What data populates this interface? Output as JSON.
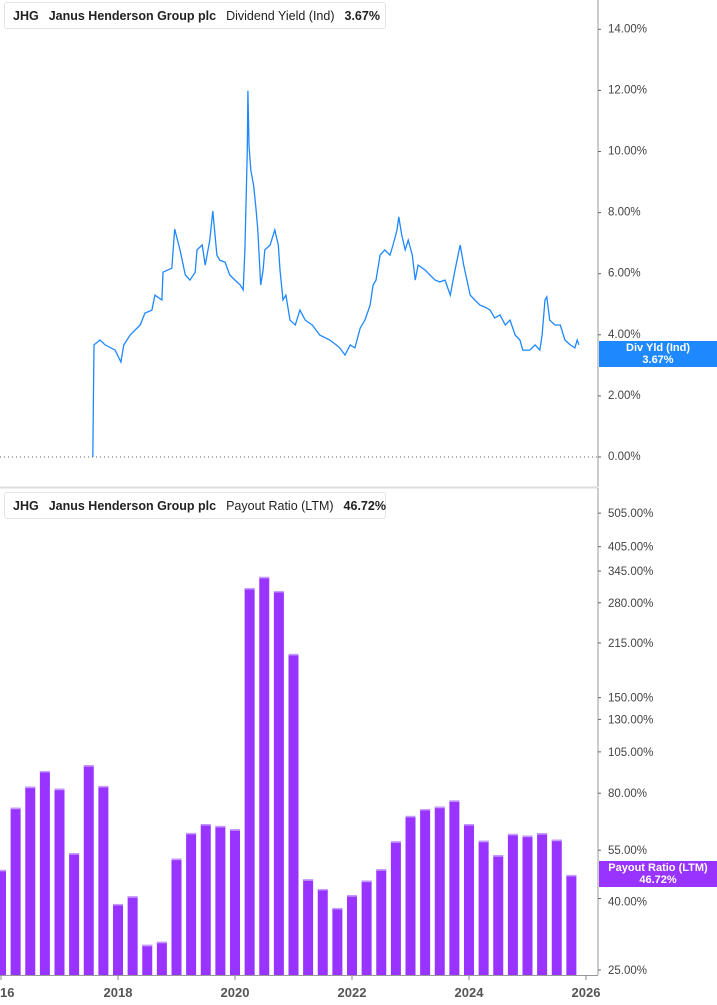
{
  "top_header": {
    "ticker": "JHG",
    "company": "Janus Henderson Group plc",
    "metric": "Dividend Yield (Ind)",
    "value": "3.67%"
  },
  "bottom_header": {
    "ticker": "JHG",
    "company": "Janus Henderson Group plc",
    "metric": "Payout Ratio (LTM)",
    "value": "46.72%"
  },
  "top_badge": {
    "label": "Div Yld (Ind)",
    "value": "3.67%"
  },
  "bottom_badge": {
    "label": "Payout Ratio (LTM)",
    "value": "46.72%"
  },
  "colors": {
    "yield": "#1e88ff",
    "payout": "#9933ff"
  },
  "x_ticks": [
    "16",
    "2018",
    "2020",
    "2022",
    "2024",
    "2026"
  ],
  "chart_data": [
    {
      "type": "line",
      "title": "Dividend Yield (Ind)",
      "x_unit": "year",
      "y_ticks": [
        "0.00%",
        "2.00%",
        "4.00%",
        "6.00%",
        "8.00%",
        "10.00%",
        "12.00%",
        "14.00%"
      ],
      "ylim": [
        0,
        14.9
      ],
      "xlim": [
        2016,
        2026.2
      ],
      "series": [
        {
          "name": "Dividend Yield (Ind)",
          "points": [
            [
              2017.57,
              0
            ],
            [
              2017.59,
              3.67
            ],
            [
              2017.69,
              3.83
            ],
            [
              2017.78,
              3.67
            ],
            [
              2017.95,
              3.5
            ],
            [
              2018.05,
              3.11
            ],
            [
              2018.1,
              3.67
            ],
            [
              2018.21,
              4.0
            ],
            [
              2018.38,
              4.32
            ],
            [
              2018.46,
              4.71
            ],
            [
              2018.58,
              4.81
            ],
            [
              2018.63,
              5.3
            ],
            [
              2018.75,
              5.14
            ],
            [
              2018.77,
              6.05
            ],
            [
              2018.92,
              6.18
            ],
            [
              2018.97,
              7.46
            ],
            [
              2019.06,
              6.78
            ],
            [
              2019.15,
              5.96
            ],
            [
              2019.23,
              5.79
            ],
            [
              2019.32,
              6.05
            ],
            [
              2019.35,
              6.78
            ],
            [
              2019.44,
              6.94
            ],
            [
              2019.49,
              6.28
            ],
            [
              2019.57,
              7.1
            ],
            [
              2019.62,
              8.05
            ],
            [
              2019.69,
              6.61
            ],
            [
              2019.74,
              6.44
            ],
            [
              2019.83,
              6.38
            ],
            [
              2019.91,
              5.96
            ],
            [
              2020.0,
              5.79
            ],
            [
              2020.09,
              5.63
            ],
            [
              2020.14,
              5.47
            ],
            [
              2020.17,
              6.78
            ],
            [
              2020.21,
              10.05
            ],
            [
              2020.22,
              11.99
            ],
            [
              2020.24,
              10.21
            ],
            [
              2020.27,
              9.39
            ],
            [
              2020.32,
              8.87
            ],
            [
              2020.36,
              8.09
            ],
            [
              2020.39,
              7.43
            ],
            [
              2020.44,
              5.63
            ],
            [
              2020.48,
              6.12
            ],
            [
              2020.51,
              6.78
            ],
            [
              2020.6,
              6.94
            ],
            [
              2020.68,
              7.43
            ],
            [
              2020.74,
              6.94
            ],
            [
              2020.77,
              6.12
            ],
            [
              2020.82,
              5.14
            ],
            [
              2020.87,
              5.3
            ],
            [
              2020.94,
              4.48
            ],
            [
              2021.03,
              4.32
            ],
            [
              2021.11,
              4.81
            ],
            [
              2021.2,
              4.48
            ],
            [
              2021.32,
              4.32
            ],
            [
              2021.45,
              3.99
            ],
            [
              2021.62,
              3.83
            ],
            [
              2021.73,
              3.67
            ],
            [
              2021.79,
              3.57
            ],
            [
              2021.88,
              3.34
            ],
            [
              2021.97,
              3.67
            ],
            [
              2022.05,
              3.57
            ],
            [
              2022.14,
              4.22
            ],
            [
              2022.22,
              4.48
            ],
            [
              2022.31,
              4.97
            ],
            [
              2022.36,
              5.63
            ],
            [
              2022.41,
              5.79
            ],
            [
              2022.48,
              6.61
            ],
            [
              2022.56,
              6.78
            ],
            [
              2022.65,
              6.61
            ],
            [
              2022.7,
              6.94
            ],
            [
              2022.77,
              7.43
            ],
            [
              2022.8,
              7.86
            ],
            [
              2022.85,
              7.27
            ],
            [
              2022.91,
              6.78
            ],
            [
              2022.96,
              7.1
            ],
            [
              2023.03,
              6.61
            ],
            [
              2023.08,
              5.79
            ],
            [
              2023.13,
              6.28
            ],
            [
              2023.25,
              6.12
            ],
            [
              2023.33,
              5.96
            ],
            [
              2023.42,
              5.79
            ],
            [
              2023.5,
              5.73
            ],
            [
              2023.59,
              5.79
            ],
            [
              2023.68,
              5.3
            ],
            [
              2023.76,
              6.12
            ],
            [
              2023.85,
              6.94
            ],
            [
              2023.91,
              6.28
            ],
            [
              2024.02,
              5.3
            ],
            [
              2024.1,
              5.14
            ],
            [
              2024.19,
              4.97
            ],
            [
              2024.27,
              4.91
            ],
            [
              2024.36,
              4.81
            ],
            [
              2024.44,
              4.55
            ],
            [
              2024.53,
              4.65
            ],
            [
              2024.62,
              4.32
            ],
            [
              2024.7,
              4.48
            ],
            [
              2024.79,
              3.99
            ],
            [
              2024.87,
              3.83
            ],
            [
              2024.92,
              3.5
            ],
            [
              2025.04,
              3.5
            ],
            [
              2025.13,
              3.67
            ],
            [
              2025.21,
              3.5
            ],
            [
              2025.25,
              3.99
            ],
            [
              2025.3,
              5.14
            ],
            [
              2025.33,
              5.24
            ],
            [
              2025.38,
              4.48
            ],
            [
              2025.47,
              4.32
            ],
            [
              2025.56,
              4.32
            ],
            [
              2025.64,
              3.83
            ],
            [
              2025.73,
              3.67
            ],
            [
              2025.81,
              3.57
            ],
            [
              2025.85,
              3.83
            ],
            [
              2025.88,
              3.67
            ]
          ]
        }
      ]
    },
    {
      "type": "bar",
      "title": "Payout Ratio (LTM)",
      "y_scale": "log",
      "y_ticks": [
        505,
        405,
        345,
        280,
        215,
        150,
        130,
        105,
        80,
        55,
        40,
        25
      ],
      "y_tick_labels": [
        "505.00%",
        "405.00%",
        "345.00%",
        "280.00%",
        "215.00%",
        "150.00%",
        "130.00%",
        "105.00%",
        "80.00%",
        "55.00%",
        "40.00%",
        "25.00%"
      ],
      "ylim": [
        25,
        505
      ],
      "x_unit": "year",
      "x": [
        2016.0,
        2016.25,
        2016.5,
        2016.75,
        2017.0,
        2017.25,
        2017.5,
        2017.75,
        2018.0,
        2018.25,
        2018.5,
        2018.75,
        2019.0,
        2019.25,
        2019.5,
        2019.75,
        2020.0,
        2020.25,
        2020.5,
        2020.75,
        2021.0,
        2021.25,
        2021.5,
        2021.75,
        2022.0,
        2022.25,
        2022.5,
        2022.75,
        2023.0,
        2023.25,
        2023.5,
        2023.75,
        2024.0,
        2024.25,
        2024.5,
        2024.75,
        2025.0,
        2025.25,
        2025.5,
        2025.75
      ],
      "values": [
        48.3,
        72.7,
        83.5,
        92.6,
        82.4,
        53.9,
        96.2,
        83.9,
        38.6,
        40.6,
        29.5,
        30.1,
        52.0,
        61.6,
        65.3,
        64.5,
        63.1,
        308.6,
        332.0,
        302.6,
        200.0,
        45.4,
        42.6,
        37.6,
        40.9,
        45.0,
        48.5,
        58.3,
        68.9,
        72.1,
        73.2,
        76.3,
        65.3,
        58.5,
        53.2,
        61.2,
        60.5,
        61.5,
        58.9,
        46.72
      ]
    }
  ]
}
